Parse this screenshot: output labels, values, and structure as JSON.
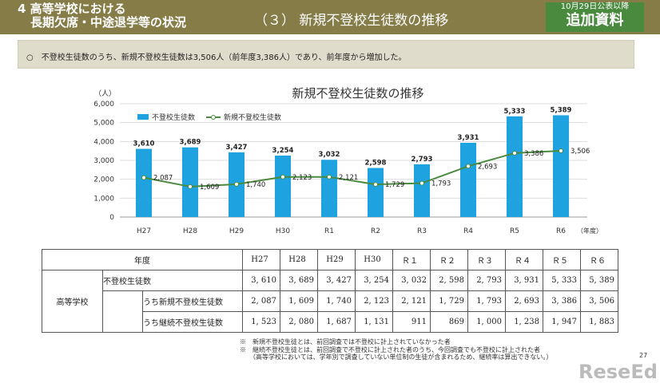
{
  "header": {
    "section": "4 高等学校における",
    "section2": "長期欠席・中途退学等の状況",
    "subtitle": "（３） 新規不登校生徒数の推移",
    "badge_small": "10月29日公表以降",
    "badge_big": "追加資料"
  },
  "summary": "○　不登校生徒数のうち、新規不登校生徒数は3,506人（前年度3,386人）であり、前年度から増加した。",
  "chart_data": {
    "type": "bar+line",
    "title": "新規不登校生徒数の推移",
    "ylabel": "（人）",
    "xlabel": "（年度）",
    "ylim": [
      0,
      6000
    ],
    "yticks": [
      "0",
      "1,000",
      "2,000",
      "3,000",
      "4,000",
      "5,000",
      "6,000"
    ],
    "categories": [
      "H27",
      "H28",
      "H29",
      "H30",
      "R1",
      "R2",
      "R3",
      "R4",
      "R5",
      "R6"
    ],
    "legend_position": "top-left",
    "series": [
      {
        "name": "不登校生徒数",
        "type": "bar",
        "color": "#1fa3e0",
        "values": [
          3610,
          3689,
          3427,
          3254,
          3032,
          2598,
          2793,
          3931,
          5333,
          5389
        ],
        "labels": [
          "3,610",
          "3,689",
          "3,427",
          "3,254",
          "3,032",
          "2,598",
          "2,793",
          "3,931",
          "5,333",
          "5,389"
        ]
      },
      {
        "name": "新規不登校生徒数",
        "type": "line",
        "color": "#4a8a3f",
        "values": [
          2087,
          1609,
          1740,
          2123,
          2121,
          1729,
          1793,
          2693,
          3386,
          3506
        ],
        "labels": [
          "2,087",
          "1,609",
          "1,740",
          "2,123",
          "2,121",
          "1,729",
          "1,793",
          "2,693",
          "3,386",
          "3,506"
        ]
      }
    ]
  },
  "table": {
    "year_label": "年度",
    "years": [
      "H27",
      "H28",
      "H29",
      "H30",
      "Ｒ１",
      "Ｒ２",
      "Ｒ３",
      "Ｒ４",
      "Ｒ５",
      "Ｒ６"
    ],
    "group": "高等学校",
    "rows": [
      {
        "label": "不登校生徒数",
        "values": [
          "3, 610",
          "3, 689",
          "3, 427",
          "3, 254",
          "3, 032",
          "2, 598",
          "2, 793",
          "3, 931",
          "5, 333",
          "5, 389"
        ]
      },
      {
        "label": "うち新規不登校生徒数",
        "values": [
          "2, 087",
          "1, 609",
          "1, 740",
          "2, 123",
          "2, 121",
          "1, 729",
          "1, 793",
          "2, 693",
          "3, 386",
          "3, 506"
        ]
      },
      {
        "label": "うち継続不登校生徒数",
        "values": [
          "1, 523",
          "2, 080",
          "1, 687",
          "1, 131",
          "911",
          "869",
          "1, 000",
          "1, 238",
          "1, 947",
          "1, 883"
        ]
      }
    ]
  },
  "footnotes": [
    "※　新規不登校生徒とは、前回調査では不登校に計上されていなかった者",
    "※　継続不登校生徒とは、前回調査で不登校に計上された者のうち、今回調査でも不登校に計上された者",
    "　　（高等学校においては、学年別で調査していない単位制の生徒が含まれるため、継続率は算出できない。）"
  ],
  "page_number": "27",
  "logo": "ReseEd"
}
